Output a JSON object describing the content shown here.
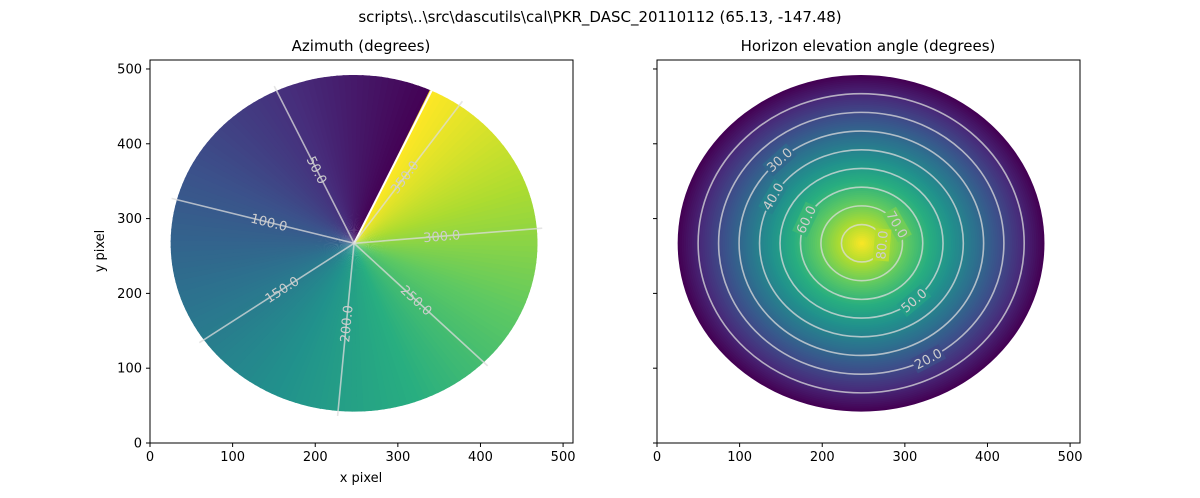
{
  "figure": {
    "suptitle": "scripts\\..\\src\\dascutils\\cal\\PKR_DASC_20110112 (65.13, -147.48)"
  },
  "chart_data": [
    {
      "type": "heatmap",
      "title": "Azimuth (degrees)",
      "xlabel": "x pixel",
      "ylabel": "y pixel",
      "xlim": [
        0,
        512
      ],
      "ylim": [
        0,
        512
      ],
      "x_ticks": [
        0,
        100,
        200,
        300,
        400,
        500
      ],
      "y_ticks": [
        0,
        100,
        200,
        300,
        400,
        500
      ],
      "colormap": "viridis",
      "value_range": [
        0,
        360
      ],
      "grid": false,
      "disk": {
        "center": [
          247,
          267
        ],
        "radius_x": 222,
        "radius_y": 225
      },
      "contours": [
        {
          "level": 50.0,
          "label": "50.0"
        },
        {
          "level": 100.0,
          "label": "100.0"
        },
        {
          "level": 150.0,
          "label": "150.0"
        },
        {
          "level": 200.0,
          "label": "200.0"
        },
        {
          "level": 250.0,
          "label": "250.0"
        },
        {
          "level": 300.0,
          "label": "300.0"
        },
        {
          "level": 350.0,
          "label": "350.0"
        }
      ]
    },
    {
      "type": "heatmap",
      "title": "Horizon elevation angle (degrees)",
      "xlabel": "",
      "ylabel": "",
      "xlim": [
        0,
        512
      ],
      "ylim": [
        0,
        512
      ],
      "x_ticks": [
        0,
        100,
        200,
        300,
        400,
        500
      ],
      "y_ticks": [
        0,
        100,
        200,
        300,
        400,
        500
      ],
      "colormap": "viridis",
      "value_range": [
        0,
        90
      ],
      "grid": false,
      "disk": {
        "center": [
          247,
          267
        ],
        "radius_x": 222,
        "radius_y": 225
      },
      "peak": [
        248,
        267
      ],
      "contours": [
        {
          "level": 10.0,
          "label": ""
        },
        {
          "level": 20.0,
          "label": "20.0"
        },
        {
          "level": 30.0,
          "label": "30.0"
        },
        {
          "level": 40.0,
          "label": "40.0"
        },
        {
          "level": 50.0,
          "label": "50.0"
        },
        {
          "level": 60.0,
          "label": "60.0"
        },
        {
          "level": 70.0,
          "label": "70.0"
        },
        {
          "level": 80.0,
          "label": "80.0"
        }
      ]
    }
  ]
}
